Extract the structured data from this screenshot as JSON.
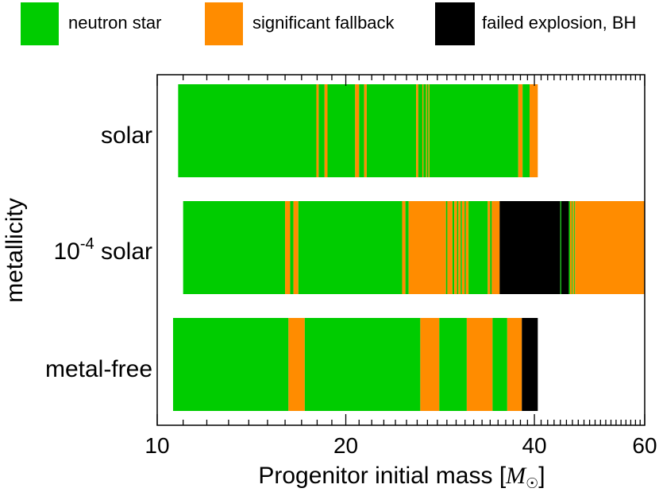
{
  "chart_data": {
    "type": "bar",
    "orientation": "horizontal",
    "subtype": "stacked-outcome-strips",
    "xscale": "log",
    "xlabel": "Progenitor initial mass [",
    "xlabel_unit": "M",
    "xlabel_unit_sub": "☉",
    "xlabel_close": "]",
    "ylabel": "metallicity",
    "xlim": [
      10,
      60
    ],
    "xticks_major": [
      {
        "value": 10,
        "label": "10"
      },
      {
        "value": 20,
        "label": "20"
      },
      {
        "value": 40,
        "label": "40"
      },
      {
        "value": 60,
        "label": "60"
      }
    ],
    "xticks_minor": [
      11,
      12,
      13,
      14,
      15,
      16,
      17,
      18,
      19,
      21,
      22,
      23,
      24,
      25,
      26,
      27,
      28,
      29,
      30,
      31,
      32,
      33,
      34,
      35,
      36,
      37,
      38,
      39,
      41,
      42,
      43,
      44,
      45,
      46,
      47,
      48,
      49,
      50,
      51,
      52,
      53,
      54,
      55,
      56,
      57,
      58,
      59
    ],
    "legend": [
      {
        "key": "ns",
        "label": "neutron star",
        "color": "#00cc00"
      },
      {
        "key": "fb",
        "label": "significant fallback",
        "color": "#ff8c00"
      },
      {
        "key": "bh",
        "label": "failed explosion, BH",
        "color": "#000000"
      }
    ],
    "categories": [
      {
        "name": "solar",
        "label": "solar",
        "range": [
          10.8,
          40.5
        ],
        "segments": [
          {
            "from": 10.8,
            "to": 17.95,
            "outcome": "ns"
          },
          {
            "from": 17.95,
            "to": 18.1,
            "outcome": "fb"
          },
          {
            "from": 18.1,
            "to": 18.5,
            "outcome": "ns"
          },
          {
            "from": 18.5,
            "to": 18.7,
            "outcome": "fb"
          },
          {
            "from": 18.7,
            "to": 20.7,
            "outcome": "ns"
          },
          {
            "from": 20.7,
            "to": 21.0,
            "outcome": "fb"
          },
          {
            "from": 21.0,
            "to": 21.4,
            "outcome": "ns"
          },
          {
            "from": 21.4,
            "to": 21.6,
            "outcome": "fb"
          },
          {
            "from": 21.6,
            "to": 25.9,
            "outcome": "ns"
          },
          {
            "from": 25.9,
            "to": 26.1,
            "outcome": "fb"
          },
          {
            "from": 26.1,
            "to": 26.5,
            "outcome": "ns"
          },
          {
            "from": 26.5,
            "to": 26.6,
            "outcome": "fb"
          },
          {
            "from": 26.6,
            "to": 26.85,
            "outcome": "ns"
          },
          {
            "from": 26.85,
            "to": 26.95,
            "outcome": "fb"
          },
          {
            "from": 26.95,
            "to": 27.1,
            "outcome": "ns"
          },
          {
            "from": 27.1,
            "to": 27.2,
            "outcome": "fb"
          },
          {
            "from": 27.2,
            "to": 37.7,
            "outcome": "ns"
          },
          {
            "from": 37.7,
            "to": 38.3,
            "outcome": "fb"
          },
          {
            "from": 38.3,
            "to": 39.3,
            "outcome": "ns"
          },
          {
            "from": 39.3,
            "to": 40.5,
            "outcome": "fb"
          }
        ]
      },
      {
        "name": "low-z",
        "label_main": "10",
        "label_sup": "-4",
        "label_rest": " solar",
        "range": [
          11.0,
          60.0
        ],
        "segments": [
          {
            "from": 11.0,
            "to": 16.0,
            "outcome": "ns"
          },
          {
            "from": 16.0,
            "to": 16.3,
            "outcome": "fb"
          },
          {
            "from": 16.3,
            "to": 16.5,
            "outcome": "ns"
          },
          {
            "from": 16.5,
            "to": 16.8,
            "outcome": "fb"
          },
          {
            "from": 16.8,
            "to": 24.6,
            "outcome": "ns"
          },
          {
            "from": 24.6,
            "to": 24.9,
            "outcome": "fb"
          },
          {
            "from": 24.9,
            "to": 25.2,
            "outcome": "ns"
          },
          {
            "from": 25.2,
            "to": 28.9,
            "outcome": "fb"
          },
          {
            "from": 28.9,
            "to": 29.05,
            "outcome": "ns"
          },
          {
            "from": 29.05,
            "to": 29.6,
            "outcome": "fb"
          },
          {
            "from": 29.6,
            "to": 29.8,
            "outcome": "ns"
          },
          {
            "from": 29.8,
            "to": 30.1,
            "outcome": "fb"
          },
          {
            "from": 30.1,
            "to": 30.25,
            "outcome": "ns"
          },
          {
            "from": 30.25,
            "to": 30.5,
            "outcome": "fb"
          },
          {
            "from": 30.5,
            "to": 30.65,
            "outcome": "ns"
          },
          {
            "from": 30.65,
            "to": 30.95,
            "outcome": "fb"
          },
          {
            "from": 30.95,
            "to": 31.1,
            "outcome": "ns"
          },
          {
            "from": 31.1,
            "to": 31.4,
            "outcome": "fb"
          },
          {
            "from": 31.4,
            "to": 33.7,
            "outcome": "ns"
          },
          {
            "from": 33.7,
            "to": 34.0,
            "outcome": "fb"
          },
          {
            "from": 34.0,
            "to": 34.2,
            "outcome": "ns"
          },
          {
            "from": 34.2,
            "to": 35.2,
            "outcome": "fb"
          },
          {
            "from": 35.2,
            "to": 44.0,
            "outcome": "bh"
          },
          {
            "from": 44.0,
            "to": 44.15,
            "outcome": "ns"
          },
          {
            "from": 44.15,
            "to": 45.4,
            "outcome": "bh"
          },
          {
            "from": 45.4,
            "to": 45.6,
            "outcome": "ns"
          },
          {
            "from": 45.6,
            "to": 45.9,
            "outcome": "fb"
          },
          {
            "from": 45.9,
            "to": 46.05,
            "outcome": "ns"
          },
          {
            "from": 46.05,
            "to": 46.3,
            "outcome": "fb"
          },
          {
            "from": 46.3,
            "to": 46.45,
            "outcome": "ns"
          },
          {
            "from": 46.45,
            "to": 60.0,
            "outcome": "fb"
          }
        ]
      },
      {
        "name": "metal-free",
        "label": "metal-free",
        "range": [
          10.6,
          40.5
        ],
        "segments": [
          {
            "from": 10.6,
            "to": 16.2,
            "outcome": "ns"
          },
          {
            "from": 16.2,
            "to": 17.2,
            "outcome": "fb"
          },
          {
            "from": 17.2,
            "to": 26.3,
            "outcome": "ns"
          },
          {
            "from": 26.3,
            "to": 28.2,
            "outcome": "fb"
          },
          {
            "from": 28.2,
            "to": 31.2,
            "outcome": "ns"
          },
          {
            "from": 31.2,
            "to": 34.3,
            "outcome": "fb"
          },
          {
            "from": 34.3,
            "to": 36.2,
            "outcome": "ns"
          },
          {
            "from": 36.2,
            "to": 38.2,
            "outcome": "fb"
          },
          {
            "from": 38.2,
            "to": 40.5,
            "outcome": "bh"
          }
        ]
      }
    ]
  }
}
